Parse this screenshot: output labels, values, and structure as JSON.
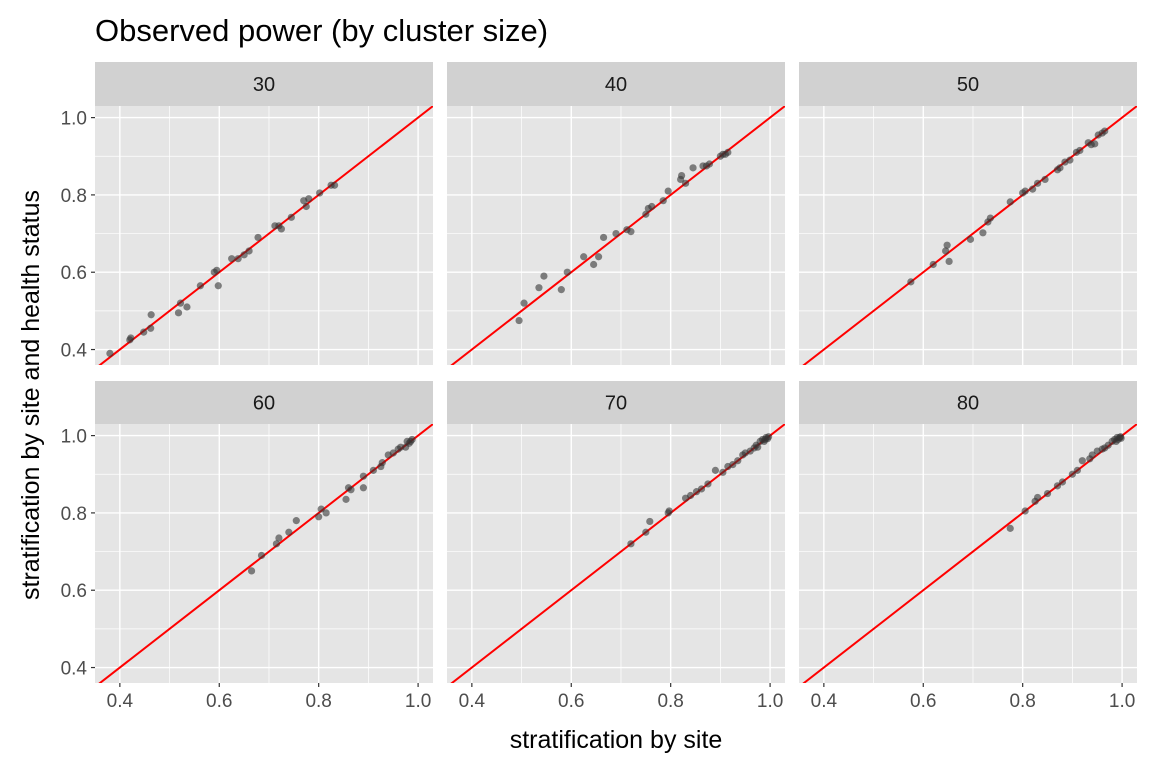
{
  "chart_data": {
    "type": "scatter",
    "title": "Observed power (by cluster size)",
    "xlabel": "stratification by site",
    "ylabel": "stratification by site and health status",
    "xlim": [
      0.35,
      1.03
    ],
    "ylim": [
      0.36,
      1.03
    ],
    "x_ticks": [
      0.4,
      0.6,
      0.8,
      1.0
    ],
    "x_tick_labels": [
      "0.4",
      "0.6",
      "0.8",
      "1.0"
    ],
    "y_ticks": [
      0.4,
      0.6,
      0.8,
      1.0
    ],
    "y_tick_labels": [
      "0.4",
      "0.6",
      "0.8",
      "1.0"
    ],
    "reference_line": {
      "slope": 1,
      "intercept": 0,
      "color": "#ff0000"
    },
    "colors": {
      "panel_bg": "#e5e5e5",
      "strip_bg": "#d1d1d1",
      "grid": "#ffffff",
      "point": "#333333",
      "line": "#ff0000"
    },
    "facets": [
      {
        "label": "30",
        "points": [
          [
            0.38,
            0.39
          ],
          [
            0.42,
            0.425
          ],
          [
            0.422,
            0.43
          ],
          [
            0.448,
            0.445
          ],
          [
            0.462,
            0.455
          ],
          [
            0.463,
            0.49
          ],
          [
            0.518,
            0.495
          ],
          [
            0.522,
            0.52
          ],
          [
            0.535,
            0.51
          ],
          [
            0.562,
            0.565
          ],
          [
            0.59,
            0.6
          ],
          [
            0.595,
            0.605
          ],
          [
            0.598,
            0.565
          ],
          [
            0.625,
            0.635
          ],
          [
            0.638,
            0.635
          ],
          [
            0.65,
            0.645
          ],
          [
            0.66,
            0.655
          ],
          [
            0.678,
            0.69
          ],
          [
            0.712,
            0.72
          ],
          [
            0.72,
            0.72
          ],
          [
            0.725,
            0.712
          ],
          [
            0.745,
            0.742
          ],
          [
            0.77,
            0.785
          ],
          [
            0.775,
            0.77
          ],
          [
            0.78,
            0.79
          ],
          [
            0.802,
            0.805
          ],
          [
            0.825,
            0.825
          ],
          [
            0.832,
            0.825
          ]
        ]
      },
      {
        "label": "40",
        "points": [
          [
            0.495,
            0.475
          ],
          [
            0.505,
            0.52
          ],
          [
            0.535,
            0.56
          ],
          [
            0.545,
            0.59
          ],
          [
            0.58,
            0.555
          ],
          [
            0.592,
            0.6
          ],
          [
            0.625,
            0.64
          ],
          [
            0.645,
            0.62
          ],
          [
            0.655,
            0.64
          ],
          [
            0.665,
            0.69
          ],
          [
            0.69,
            0.7
          ],
          [
            0.712,
            0.71
          ],
          [
            0.72,
            0.705
          ],
          [
            0.75,
            0.75
          ],
          [
            0.755,
            0.765
          ],
          [
            0.762,
            0.77
          ],
          [
            0.785,
            0.785
          ],
          [
            0.795,
            0.81
          ],
          [
            0.82,
            0.84
          ],
          [
            0.822,
            0.85
          ],
          [
            0.83,
            0.83
          ],
          [
            0.845,
            0.87
          ],
          [
            0.865,
            0.875
          ],
          [
            0.872,
            0.875
          ],
          [
            0.878,
            0.88
          ],
          [
            0.9,
            0.9
          ],
          [
            0.905,
            0.905
          ],
          [
            0.91,
            0.905
          ],
          [
            0.915,
            0.91
          ]
        ]
      },
      {
        "label": "50",
        "points": [
          [
            0.575,
            0.575
          ],
          [
            0.62,
            0.62
          ],
          [
            0.645,
            0.655
          ],
          [
            0.648,
            0.67
          ],
          [
            0.652,
            0.628
          ],
          [
            0.695,
            0.685
          ],
          [
            0.72,
            0.702
          ],
          [
            0.73,
            0.73
          ],
          [
            0.735,
            0.74
          ],
          [
            0.775,
            0.782
          ],
          [
            0.8,
            0.805
          ],
          [
            0.805,
            0.81
          ],
          [
            0.82,
            0.815
          ],
          [
            0.83,
            0.83
          ],
          [
            0.845,
            0.84
          ],
          [
            0.87,
            0.865
          ],
          [
            0.875,
            0.87
          ],
          [
            0.885,
            0.885
          ],
          [
            0.895,
            0.89
          ],
          [
            0.908,
            0.91
          ],
          [
            0.915,
            0.915
          ],
          [
            0.932,
            0.935
          ],
          [
            0.938,
            0.93
          ],
          [
            0.945,
            0.932
          ],
          [
            0.952,
            0.955
          ],
          [
            0.96,
            0.96
          ],
          [
            0.965,
            0.965
          ]
        ]
      },
      {
        "label": "60",
        "points": [
          [
            0.665,
            0.65
          ],
          [
            0.685,
            0.69
          ],
          [
            0.715,
            0.72
          ],
          [
            0.72,
            0.735
          ],
          [
            0.74,
            0.75
          ],
          [
            0.755,
            0.78
          ],
          [
            0.8,
            0.79
          ],
          [
            0.805,
            0.81
          ],
          [
            0.815,
            0.8
          ],
          [
            0.855,
            0.835
          ],
          [
            0.86,
            0.865
          ],
          [
            0.865,
            0.86
          ],
          [
            0.89,
            0.865
          ],
          [
            0.89,
            0.895
          ],
          [
            0.91,
            0.91
          ],
          [
            0.925,
            0.92
          ],
          [
            0.928,
            0.93
          ],
          [
            0.94,
            0.95
          ],
          [
            0.95,
            0.955
          ],
          [
            0.96,
            0.965
          ],
          [
            0.965,
            0.97
          ],
          [
            0.975,
            0.97
          ],
          [
            0.978,
            0.985
          ],
          [
            0.982,
            0.98
          ],
          [
            0.985,
            0.985
          ],
          [
            0.988,
            0.99
          ]
        ]
      },
      {
        "label": "70",
        "points": [
          [
            0.72,
            0.72
          ],
          [
            0.75,
            0.75
          ],
          [
            0.758,
            0.778
          ],
          [
            0.795,
            0.8
          ],
          [
            0.797,
            0.805
          ],
          [
            0.83,
            0.838
          ],
          [
            0.84,
            0.845
          ],
          [
            0.852,
            0.855
          ],
          [
            0.862,
            0.862
          ],
          [
            0.875,
            0.875
          ],
          [
            0.89,
            0.91
          ],
          [
            0.905,
            0.905
          ],
          [
            0.915,
            0.92
          ],
          [
            0.925,
            0.925
          ],
          [
            0.935,
            0.935
          ],
          [
            0.945,
            0.95
          ],
          [
            0.95,
            0.955
          ],
          [
            0.96,
            0.96
          ],
          [
            0.968,
            0.968
          ],
          [
            0.972,
            0.975
          ],
          [
            0.975,
            0.97
          ],
          [
            0.98,
            0.985
          ],
          [
            0.985,
            0.99
          ],
          [
            0.988,
            0.985
          ],
          [
            0.99,
            0.99
          ],
          [
            0.992,
            0.995
          ],
          [
            0.995,
            0.992
          ],
          [
            0.997,
            0.997
          ]
        ]
      },
      {
        "label": "80",
        "points": [
          [
            0.775,
            0.76
          ],
          [
            0.805,
            0.805
          ],
          [
            0.825,
            0.83
          ],
          [
            0.83,
            0.84
          ],
          [
            0.85,
            0.85
          ],
          [
            0.87,
            0.87
          ],
          [
            0.88,
            0.88
          ],
          [
            0.9,
            0.9
          ],
          [
            0.91,
            0.91
          ],
          [
            0.92,
            0.935
          ],
          [
            0.935,
            0.94
          ],
          [
            0.94,
            0.95
          ],
          [
            0.95,
            0.96
          ],
          [
            0.96,
            0.965
          ],
          [
            0.965,
            0.968
          ],
          [
            0.972,
            0.975
          ],
          [
            0.98,
            0.985
          ],
          [
            0.985,
            0.99
          ],
          [
            0.988,
            0.985
          ],
          [
            0.99,
            0.995
          ],
          [
            0.992,
            0.99
          ],
          [
            0.995,
            0.995
          ],
          [
            0.997,
            0.997
          ],
          [
            0.998,
            0.993
          ]
        ]
      }
    ]
  }
}
